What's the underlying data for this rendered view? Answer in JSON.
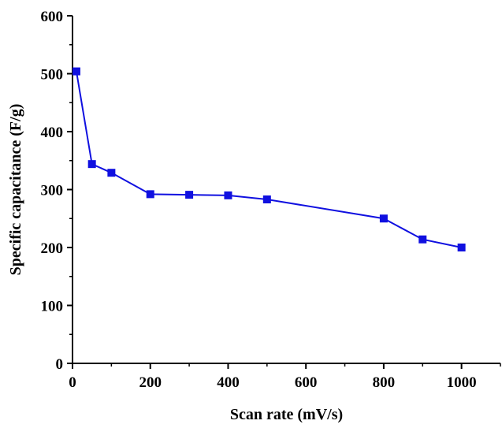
{
  "chart_data": {
    "type": "line",
    "title": "",
    "xlabel": "Scan rate (mV/s)",
    "ylabel": "Specific capacitance (F/g)",
    "xlim": [
      0,
      1100
    ],
    "ylim": [
      0,
      600
    ],
    "x_ticks": [
      0,
      200,
      400,
      600,
      800,
      1000
    ],
    "y_ticks": [
      0,
      100,
      200,
      300,
      400,
      500,
      600
    ],
    "grid": false,
    "legend": "none",
    "series": [
      {
        "color": "#1010e0",
        "marker": "square",
        "x": [
          10,
          50,
          100,
          200,
          300,
          400,
          500,
          800,
          900,
          1000
        ],
        "y": [
          504,
          344,
          329,
          292,
          291,
          290,
          283,
          250,
          214,
          200
        ]
      }
    ]
  }
}
